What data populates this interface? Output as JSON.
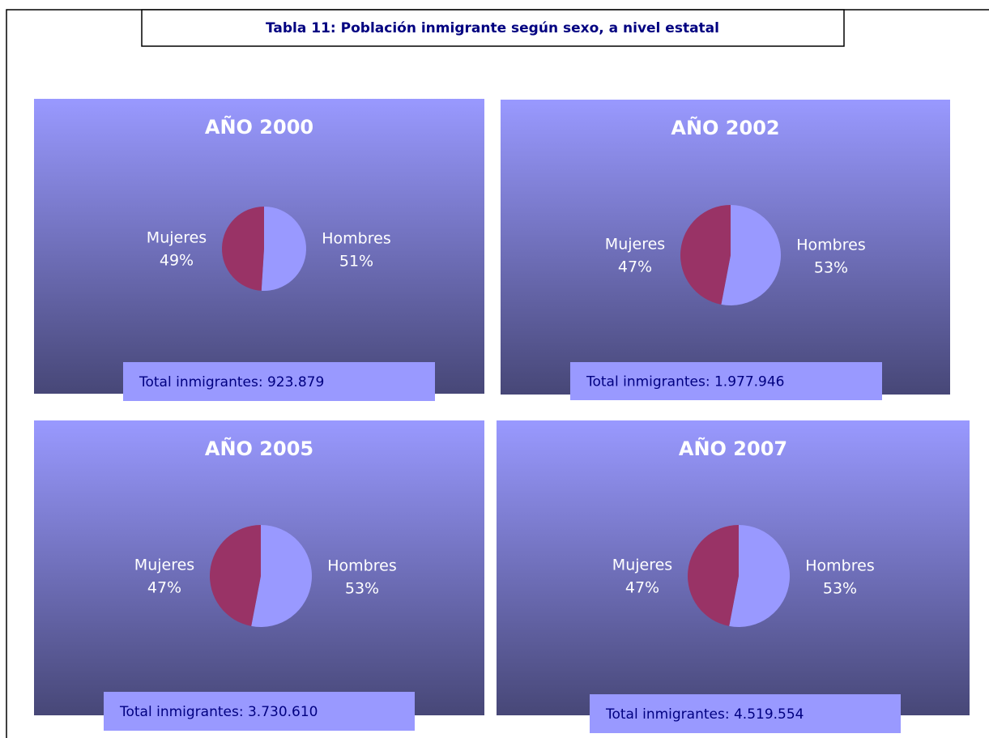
{
  "title": "Tabla 11: Población inmigrante según sexo, a nivel estatal",
  "chart_data": [
    {
      "type": "pie",
      "title": "AÑO 2000",
      "categories": [
        "Hombres",
        "Mujeres"
      ],
      "values": [
        51,
        49
      ],
      "value_labels": [
        "51%",
        "49%"
      ],
      "colors": [
        "#9999ff",
        "#993366"
      ],
      "annotation": "Total inmigrantes: 923.879"
    },
    {
      "type": "pie",
      "title": "AÑO 2002",
      "categories": [
        "Hombres",
        "Mujeres"
      ],
      "values": [
        53,
        47
      ],
      "value_labels": [
        "53%",
        "47%"
      ],
      "colors": [
        "#9999ff",
        "#993366"
      ],
      "annotation": "Total inmigrantes: 1.977.946"
    },
    {
      "type": "pie",
      "title": "AÑO 2005",
      "categories": [
        "Hombres",
        "Mujeres"
      ],
      "values": [
        53,
        47
      ],
      "value_labels": [
        "53%",
        "47%"
      ],
      "colors": [
        "#9999ff",
        "#993366"
      ],
      "annotation": "Total inmigrantes: 3.730.610"
    },
    {
      "type": "pie",
      "title": "AÑO 2007",
      "categories": [
        "Hombres",
        "Mujeres"
      ],
      "values": [
        53,
        47
      ],
      "value_labels": [
        "53%",
        "47%"
      ],
      "colors": [
        "#9999ff",
        "#993366"
      ],
      "annotation": "Total inmigrantes: 4.519.554"
    }
  ]
}
